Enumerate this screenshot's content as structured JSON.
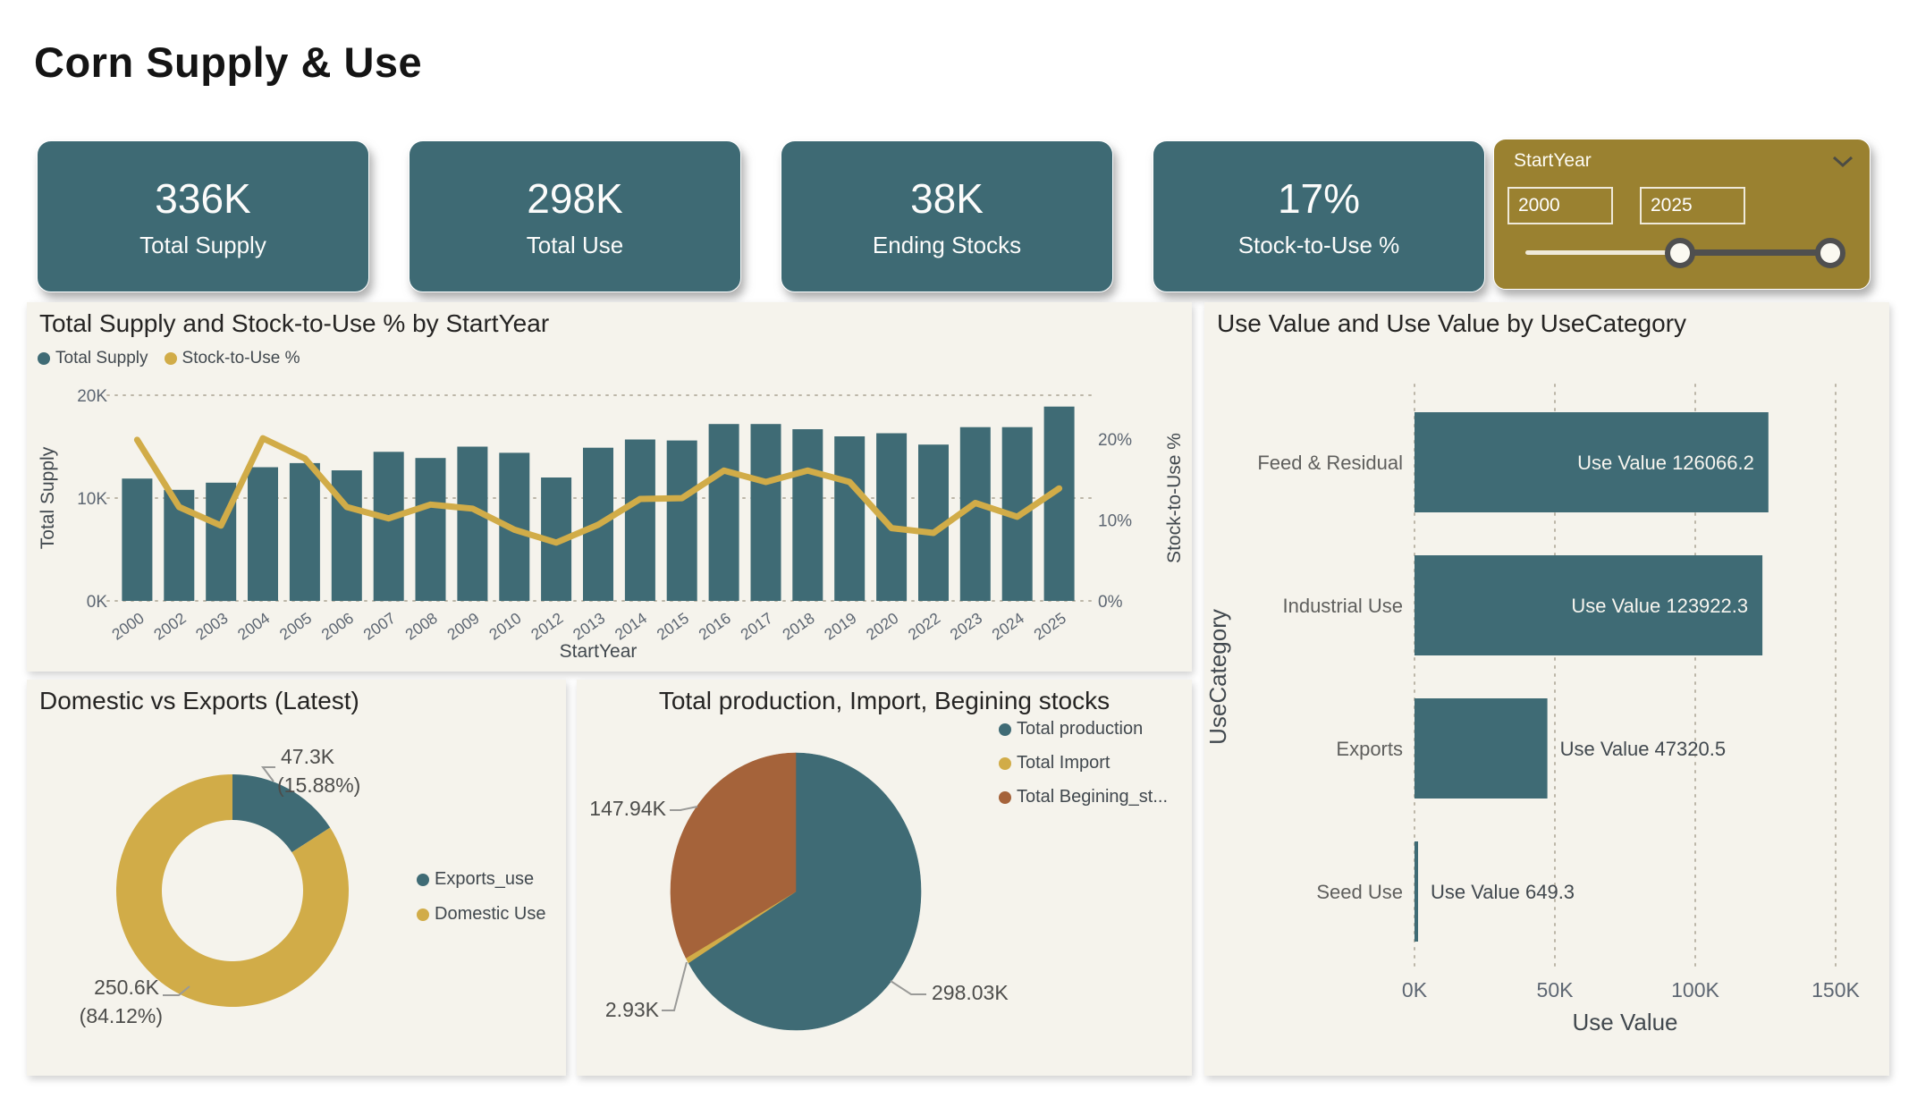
{
  "page": {
    "title": "Corn Supply & Use"
  },
  "kpis": [
    {
      "value": "336K",
      "label": "Total Supply"
    },
    {
      "value": "298K",
      "label": "Total Use"
    },
    {
      "value": "38K",
      "label": "Ending Stocks"
    },
    {
      "value": "17%",
      "label": "Stock-to-Use %"
    }
  ],
  "slicer": {
    "title": "StartYear",
    "min_value": "2000",
    "max_value": "2025"
  },
  "colors": {
    "teal": "#3f6b75",
    "gold": "#d1ac48",
    "rust": "#a5633a",
    "slicer_bg": "#9a8130",
    "panel_bg": "#f5f3ec",
    "grid_dot": "#bcb6a8",
    "axis_text": "#5d6672",
    "label_text": "#41484e",
    "leader_line": "#9a9a98"
  },
  "chart_data": [
    {
      "type": "combo",
      "title": "Total Supply and Stock-to-Use % by StartYear",
      "categories": [
        "2000",
        "2002",
        "2003",
        "2004",
        "2005",
        "2006",
        "2007",
        "2008",
        "2009",
        "2010",
        "2012",
        "2013",
        "2014",
        "2015",
        "2016",
        "2017",
        "2018",
        "2019",
        "2020",
        "2022",
        "2023",
        "2024",
        "2025"
      ],
      "series": [
        {
          "name": "Total Supply",
          "type": "bar",
          "axis": "left",
          "color": "#3f6b75",
          "values_k": [
            11.9,
            10.8,
            11.5,
            13.0,
            13.4,
            12.7,
            14.5,
            13.9,
            15.0,
            14.4,
            12.0,
            14.9,
            15.7,
            15.6,
            17.2,
            17.2,
            16.7,
            16.0,
            16.3,
            15.2,
            16.9,
            16.9,
            18.9
          ]
        },
        {
          "name": "Stock-to-Use %",
          "type": "line",
          "axis": "right",
          "color": "#d1ac48",
          "values_pct": [
            19.9,
            11.6,
            9.3,
            20.1,
            17.6,
            11.6,
            10.2,
            11.9,
            11.4,
            8.8,
            7.2,
            9.4,
            12.6,
            12.7,
            16.1,
            14.7,
            16.1,
            14.7,
            9.0,
            8.4,
            12.1,
            10.4,
            13.9
          ]
        }
      ],
      "xlabel": "StartYear",
      "ylabel_left": "Total Supply",
      "ylabel_right": "Stock-to-Use %",
      "y_left_ticks": [
        "0K",
        "10K",
        "20K"
      ],
      "y_left_tick_step_k": 10,
      "y_right_ticks": [
        "0%",
        "10%",
        "20%"
      ],
      "y_right_tick_step_pct": 10,
      "grid": "dotted"
    },
    {
      "type": "pie",
      "variant": "donut",
      "title": "Domestic vs Exports (Latest)",
      "slices": [
        {
          "label": "Exports_use",
          "value_label": "47.3K",
          "pct_label": "(15.88%)",
          "pct": 15.88,
          "color": "#3f6b75"
        },
        {
          "label": "Domestic Use",
          "value_label": "250.6K",
          "pct_label": "(84.12%)",
          "pct": 84.12,
          "color": "#d1ac48"
        }
      ],
      "legend_position": "right"
    },
    {
      "type": "pie",
      "title": "Total production, Import, Begining stocks",
      "slices": [
        {
          "label": "Total production",
          "value_label": "298.03K",
          "value": 298.03,
          "color": "#3f6b75"
        },
        {
          "label": "Total Import",
          "value_label": "2.93K",
          "value": 2.93,
          "color": "#d1ac48"
        },
        {
          "label": "Total Begining_st...",
          "value_label": "147.94K",
          "value": 147.94,
          "color": "#a5633a"
        }
      ],
      "legend_position": "top-right"
    },
    {
      "type": "bar",
      "orientation": "horizontal",
      "title": "Use Value and Use Value by UseCategory",
      "categories": [
        "Feed & Residual",
        "Industrial Use",
        "Exports",
        "Seed Use"
      ],
      "values": [
        126066.2,
        123922.3,
        47320.5,
        649.3
      ],
      "data_labels": [
        "Use Value 126066.2",
        "Use Value 123922.3",
        "Use Value 47320.5",
        "Use Value 649.3"
      ],
      "xlabel": "Use Value",
      "ylabel": "UseCategory",
      "x_ticks": [
        "0K",
        "50K",
        "100K",
        "150K"
      ],
      "xlim": [
        0,
        150000
      ],
      "bar_color": "#3f6b75",
      "grid": "dotted"
    }
  ]
}
